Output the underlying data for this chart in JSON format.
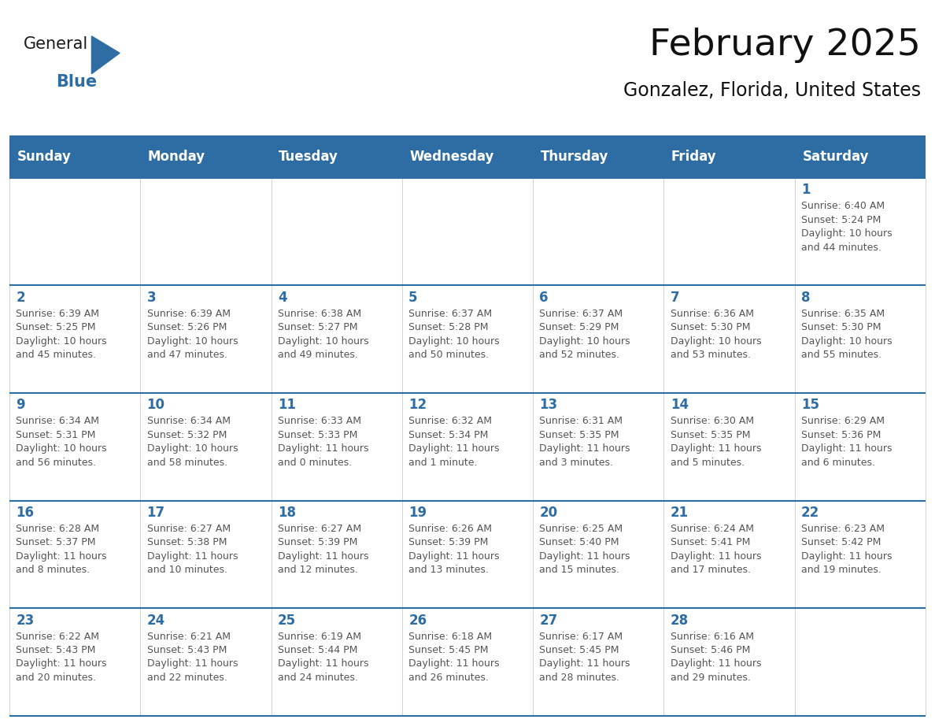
{
  "title": "February 2025",
  "subtitle": "Gonzalez, Florida, United States",
  "logo_text1": "General",
  "logo_text2": "Blue",
  "header_bg_color": "#2E6DA4",
  "header_text_color": "#FFFFFF",
  "cell_bg_color": "#FFFFFF",
  "grid_line_color": "#2E6DA4",
  "day_number_color": "#2E6DA4",
  "cell_text_color": "#555555",
  "days_of_week": [
    "Sunday",
    "Monday",
    "Tuesday",
    "Wednesday",
    "Thursday",
    "Friday",
    "Saturday"
  ],
  "weeks": [
    [
      null,
      null,
      null,
      null,
      null,
      null,
      1
    ],
    [
      2,
      3,
      4,
      5,
      6,
      7,
      8
    ],
    [
      9,
      10,
      11,
      12,
      13,
      14,
      15
    ],
    [
      16,
      17,
      18,
      19,
      20,
      21,
      22
    ],
    [
      23,
      24,
      25,
      26,
      27,
      28,
      null
    ]
  ],
  "cell_data": {
    "1": {
      "sunrise": "6:40 AM",
      "sunset": "5:24 PM",
      "daylight": "10 hours and 44 minutes."
    },
    "2": {
      "sunrise": "6:39 AM",
      "sunset": "5:25 PM",
      "daylight": "10 hours and 45 minutes."
    },
    "3": {
      "sunrise": "6:39 AM",
      "sunset": "5:26 PM",
      "daylight": "10 hours and 47 minutes."
    },
    "4": {
      "sunrise": "6:38 AM",
      "sunset": "5:27 PM",
      "daylight": "10 hours and 49 minutes."
    },
    "5": {
      "sunrise": "6:37 AM",
      "sunset": "5:28 PM",
      "daylight": "10 hours and 50 minutes."
    },
    "6": {
      "sunrise": "6:37 AM",
      "sunset": "5:29 PM",
      "daylight": "10 hours and 52 minutes."
    },
    "7": {
      "sunrise": "6:36 AM",
      "sunset": "5:30 PM",
      "daylight": "10 hours and 53 minutes."
    },
    "8": {
      "sunrise": "6:35 AM",
      "sunset": "5:30 PM",
      "daylight": "10 hours and 55 minutes."
    },
    "9": {
      "sunrise": "6:34 AM",
      "sunset": "5:31 PM",
      "daylight": "10 hours and 56 minutes."
    },
    "10": {
      "sunrise": "6:34 AM",
      "sunset": "5:32 PM",
      "daylight": "10 hours and 58 minutes."
    },
    "11": {
      "sunrise": "6:33 AM",
      "sunset": "5:33 PM",
      "daylight": "11 hours and 0 minutes."
    },
    "12": {
      "sunrise": "6:32 AM",
      "sunset": "5:34 PM",
      "daylight": "11 hours and 1 minute."
    },
    "13": {
      "sunrise": "6:31 AM",
      "sunset": "5:35 PM",
      "daylight": "11 hours and 3 minutes."
    },
    "14": {
      "sunrise": "6:30 AM",
      "sunset": "5:35 PM",
      "daylight": "11 hours and 5 minutes."
    },
    "15": {
      "sunrise": "6:29 AM",
      "sunset": "5:36 PM",
      "daylight": "11 hours and 6 minutes."
    },
    "16": {
      "sunrise": "6:28 AM",
      "sunset": "5:37 PM",
      "daylight": "11 hours and 8 minutes."
    },
    "17": {
      "sunrise": "6:27 AM",
      "sunset": "5:38 PM",
      "daylight": "11 hours and 10 minutes."
    },
    "18": {
      "sunrise": "6:27 AM",
      "sunset": "5:39 PM",
      "daylight": "11 hours and 12 minutes."
    },
    "19": {
      "sunrise": "6:26 AM",
      "sunset": "5:39 PM",
      "daylight": "11 hours and 13 minutes."
    },
    "20": {
      "sunrise": "6:25 AM",
      "sunset": "5:40 PM",
      "daylight": "11 hours and 15 minutes."
    },
    "21": {
      "sunrise": "6:24 AM",
      "sunset": "5:41 PM",
      "daylight": "11 hours and 17 minutes."
    },
    "22": {
      "sunrise": "6:23 AM",
      "sunset": "5:42 PM",
      "daylight": "11 hours and 19 minutes."
    },
    "23": {
      "sunrise": "6:22 AM",
      "sunset": "5:43 PM",
      "daylight": "11 hours and 20 minutes."
    },
    "24": {
      "sunrise": "6:21 AM",
      "sunset": "5:43 PM",
      "daylight": "11 hours and 22 minutes."
    },
    "25": {
      "sunrise": "6:19 AM",
      "sunset": "5:44 PM",
      "daylight": "11 hours and 24 minutes."
    },
    "26": {
      "sunrise": "6:18 AM",
      "sunset": "5:45 PM",
      "daylight": "11 hours and 26 minutes."
    },
    "27": {
      "sunrise": "6:17 AM",
      "sunset": "5:45 PM",
      "daylight": "11 hours and 28 minutes."
    },
    "28": {
      "sunrise": "6:16 AM",
      "sunset": "5:46 PM",
      "daylight": "11 hours and 29 minutes."
    }
  },
  "logo_general_color": "#1a1a1a",
  "logo_blue_color": "#2E6DA4",
  "logo_triangle_color": "#2E6DA4"
}
